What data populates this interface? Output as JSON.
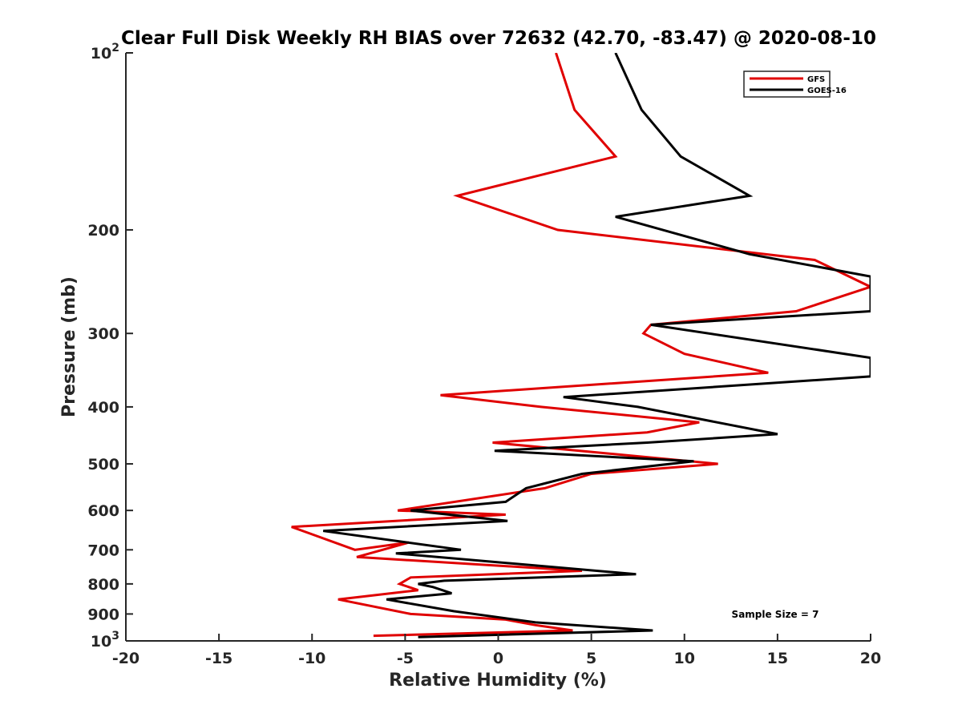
{
  "chart_data": {
    "type": "line",
    "title": "Clear Full Disk Weekly RH BIAS over 72632 (42.70, -83.47) @ 2020-08-10",
    "xlabel": "Relative Humidity (%)",
    "ylabel": "Pressure (mb)",
    "xlim": [
      -20,
      20
    ],
    "ylim": [
      100,
      1000
    ],
    "y_scale": "log",
    "y_reversed": true,
    "grid": false,
    "legend_position": "top-right",
    "x_ticks": [
      "-20",
      "-15",
      "-10",
      "-5",
      "0",
      "5",
      "10",
      "15",
      "20"
    ],
    "y_ticks": [
      {
        "value": 100,
        "base": "10",
        "exp": "2"
      },
      {
        "value": 200,
        "label": "200"
      },
      {
        "value": 300,
        "label": "300"
      },
      {
        "value": 400,
        "label": "400"
      },
      {
        "value": 500,
        "label": "500"
      },
      {
        "value": 600,
        "label": "600"
      },
      {
        "value": 700,
        "label": "700"
      },
      {
        "value": 800,
        "label": "800"
      },
      {
        "value": 900,
        "label": "900"
      },
      {
        "value": 1000,
        "base": "10",
        "exp": "3"
      }
    ],
    "annotation": "Sample Size = 7",
    "series": [
      {
        "name": "GFS",
        "color": "#e00000",
        "points": [
          [
            3.1,
            100
          ],
          [
            4.1,
            125
          ],
          [
            6.3,
            150
          ],
          [
            -2.2,
            175
          ],
          [
            3.2,
            200
          ],
          [
            17.0,
            225
          ],
          [
            20.0,
            250
          ],
          [
            16.0,
            275
          ],
          [
            8.2,
            290
          ],
          [
            7.8,
            300
          ],
          [
            10.0,
            325
          ],
          [
            14.5,
            350
          ],
          [
            -3.1,
            382
          ],
          [
            2.3,
            400
          ],
          [
            10.8,
            425
          ],
          [
            8.0,
            442
          ],
          [
            -0.3,
            460
          ],
          [
            11.8,
            500
          ],
          [
            5.0,
            520
          ],
          [
            2.5,
            550
          ],
          [
            -5.4,
            600
          ],
          [
            0.4,
            610
          ],
          [
            -11.1,
            640
          ],
          [
            -7.7,
            700
          ],
          [
            -4.8,
            680
          ],
          [
            -7.6,
            720
          ],
          [
            4.5,
            760
          ],
          [
            -4.7,
            780
          ],
          [
            -5.3,
            800
          ],
          [
            -4.3,
            820
          ],
          [
            -8.6,
            850
          ],
          [
            -4.7,
            900
          ],
          [
            0.4,
            920
          ],
          [
            2.0,
            940
          ],
          [
            4.0,
            960
          ],
          [
            -6.7,
            980
          ]
        ]
      },
      {
        "name": "GOES-16",
        "color": "#000000",
        "points": [
          [
            6.3,
            100
          ],
          [
            7.7,
            125
          ],
          [
            9.8,
            150
          ],
          [
            13.5,
            175
          ],
          [
            6.3,
            190
          ],
          [
            13.5,
            220
          ],
          [
            20.0,
            240
          ],
          [
            20.0,
            275
          ],
          [
            8.2,
            290
          ],
          [
            20.0,
            330
          ],
          [
            20.0,
            355
          ],
          [
            3.5,
            385
          ],
          [
            7.5,
            400
          ],
          [
            15.0,
            445
          ],
          [
            8.0,
            460
          ],
          [
            -0.2,
            475
          ],
          [
            10.5,
            495
          ],
          [
            4.5,
            520
          ],
          [
            1.5,
            550
          ],
          [
            0.4,
            580
          ],
          [
            -4.7,
            600
          ],
          [
            0.5,
            625
          ],
          [
            -9.4,
            650
          ],
          [
            -2.0,
            700
          ],
          [
            -5.5,
            710
          ],
          [
            7.4,
            770
          ],
          [
            -2.9,
            790
          ],
          [
            -4.3,
            800
          ],
          [
            -3.5,
            810
          ],
          [
            -2.5,
            830
          ],
          [
            -6.0,
            850
          ],
          [
            -2.4,
            890
          ],
          [
            2.0,
            930
          ],
          [
            8.3,
            960
          ],
          [
            -4.3,
            985
          ]
        ]
      }
    ]
  }
}
